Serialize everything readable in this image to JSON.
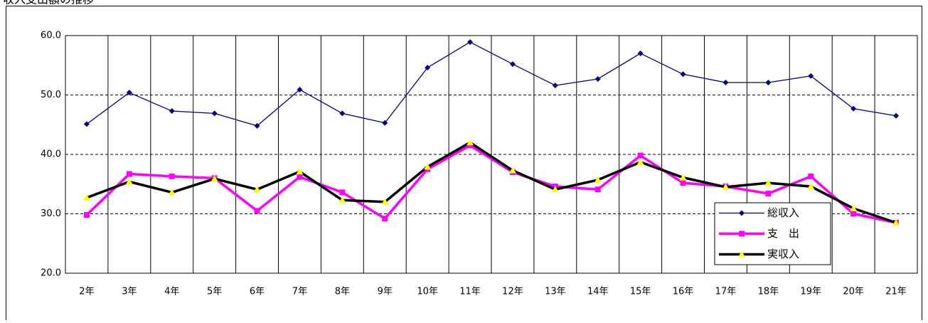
{
  "chart_data": {
    "type": "line",
    "title": "収入支出額の推移",
    "categories": [
      "2年",
      "3年",
      "4年",
      "5年",
      "6年",
      "7年",
      "8年",
      "9年",
      "10年",
      "11年",
      "12年",
      "13年",
      "14年",
      "15年",
      "16年",
      "17年",
      "18年",
      "19年",
      "20年",
      "21年"
    ],
    "series": [
      {
        "name": "総収入",
        "color": "#000080",
        "marker": "diamond",
        "values": [
          45.1,
          50.4,
          47.3,
          46.9,
          44.8,
          50.9,
          46.9,
          45.3,
          54.6,
          58.9,
          55.2,
          51.6,
          52.7,
          57.0,
          53.5,
          52.1,
          52.1,
          53.2,
          47.7,
          46.5
        ]
      },
      {
        "name": "支　出",
        "color": "#ff00ff",
        "marker": "square",
        "values": [
          29.8,
          36.7,
          36.3,
          36.0,
          30.5,
          36.2,
          33.6,
          29.2,
          37.5,
          41.5,
          37.0,
          34.6,
          34.1,
          39.8,
          35.2,
          34.6,
          33.4,
          36.3,
          30.0,
          28.5
        ]
      },
      {
        "name": "実収入",
        "color": "#000000",
        "marker": "triangle",
        "marker_color": "#ffff00",
        "values": [
          32.7,
          35.4,
          33.6,
          35.9,
          34.1,
          37.1,
          32.3,
          32.0,
          37.9,
          42.0,
          37.3,
          34.1,
          35.7,
          38.7,
          36.1,
          34.5,
          35.2,
          34.6,
          30.9,
          28.5
        ]
      }
    ],
    "ylim": [
      20,
      60
    ],
    "yticks": [
      {
        "value": 20,
        "label": "20.0"
      },
      {
        "value": 30,
        "label": "30.0"
      },
      {
        "value": 40,
        "label": "40.0"
      },
      {
        "value": 50,
        "label": "50.0"
      },
      {
        "value": 60,
        "label": "60.0"
      }
    ],
    "grid": true,
    "legend": "right"
  }
}
